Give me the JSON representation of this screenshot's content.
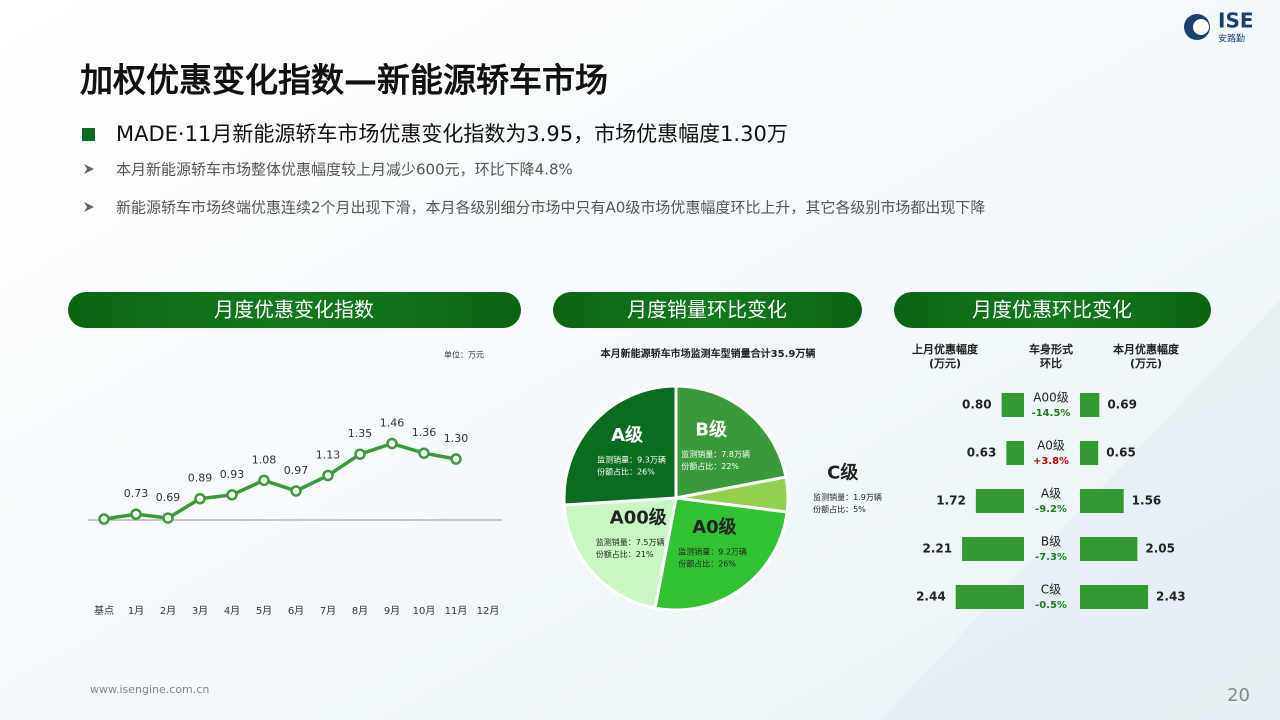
{
  "header": {
    "title": "加权优惠变化指数—新能源轿车市场",
    "logo": "ISE",
    "logo_sub": "安路勤"
  },
  "headline": "MADE·11月新能源轿车市场优惠变化指数为3.95，市场优惠幅度1.30万",
  "bullets": [
    "本月新能源轿车市场整体优惠幅度较上月减少600元，环比下降4.8%",
    "新能源轿车市场终端优惠连续2个月出现下滑，本月各级别细分市场中只有A0级市场优惠幅度环比上升，其它各级别市场都出现下降"
  ],
  "footer": {
    "url": "www.isengine.com.cn",
    "page": "20"
  },
  "chart_data": [
    {
      "type": "line",
      "title": "月度优惠变化指数",
      "unit": "单位：万元",
      "categories": [
        "基点",
        "1月",
        "2月",
        "3月",
        "4月",
        "5月",
        "6月",
        "7月",
        "8月",
        "9月",
        "10月",
        "11月",
        "12月"
      ],
      "values": [
        0.68,
        0.73,
        0.69,
        0.89,
        0.93,
        1.08,
        0.97,
        1.13,
        1.35,
        1.46,
        1.36,
        1.3,
        null
      ],
      "value_labels": [
        null,
        "0.73",
        "0.69",
        "0.89",
        "0.93",
        "1.08",
        "0.97",
        "1.13",
        "1.35",
        "1.46",
        "1.36",
        "1.30",
        null
      ],
      "color": "#3a9a3a",
      "ylim": [
        0.67,
        1.6
      ]
    },
    {
      "type": "pie",
      "title": "月度销量环比变化",
      "subtitle": "本月新能源轿车市场监测车型销量合计35.9万辆",
      "categories": [
        "B级",
        "C级",
        "A0级",
        "A00级",
        "A级"
      ],
      "values": [
        22,
        5,
        26,
        21,
        26
      ],
      "value_labels": [
        "份额占比：22%",
        "份额占比：5%",
        "份额占比：26%",
        "份额占比：21%",
        "份额占比：26%"
      ],
      "sales_labels": [
        "监测销量：7.8万辆",
        "监测销量：1.9万辆",
        "监测销量：9.2万辆",
        "监测销量：7.5万辆",
        "监测销量：9.3万辆"
      ],
      "colors": [
        "#3a9a3a",
        "#92d050",
        "#33c233",
        "#c8f7c2",
        "#0b6b1e"
      ],
      "text_colors": [
        "#ffffff",
        "#222222",
        "#222222",
        "#222222",
        "#ffffff"
      ]
    },
    {
      "type": "butterfly",
      "title": "月度优惠环比变化",
      "column_titles": [
        "上月优惠幅度",
        "(万元)",
        "车身形式",
        "环比",
        "本月优惠幅度",
        "(万元)"
      ],
      "categories": [
        "A00级",
        "A0级",
        "A级",
        "B级",
        "C级"
      ],
      "series": [
        {
          "name": "上月优惠幅度",
          "color": "#339933",
          "values": [
            0.8,
            0.63,
            1.72,
            2.21,
            2.44
          ],
          "value_labels": [
            "0.80",
            "0.63",
            "1.72",
            "2.21",
            "2.44"
          ]
        },
        {
          "name": "本月优惠幅度",
          "color": "#339933",
          "values": [
            0.69,
            0.65,
            1.56,
            2.05,
            2.43
          ],
          "value_labels": [
            "0.69",
            "0.65",
            "1.56",
            "2.05",
            "2.43"
          ]
        }
      ],
      "change": [
        -14.5,
        3.8,
        -9.2,
        -7.3,
        -0.5
      ],
      "change_labels": [
        "-14.5%",
        "+3.8%",
        "-9.2%",
        "-7.3%",
        "-0.5%"
      ],
      "xlim": [
        0,
        3
      ]
    }
  ]
}
